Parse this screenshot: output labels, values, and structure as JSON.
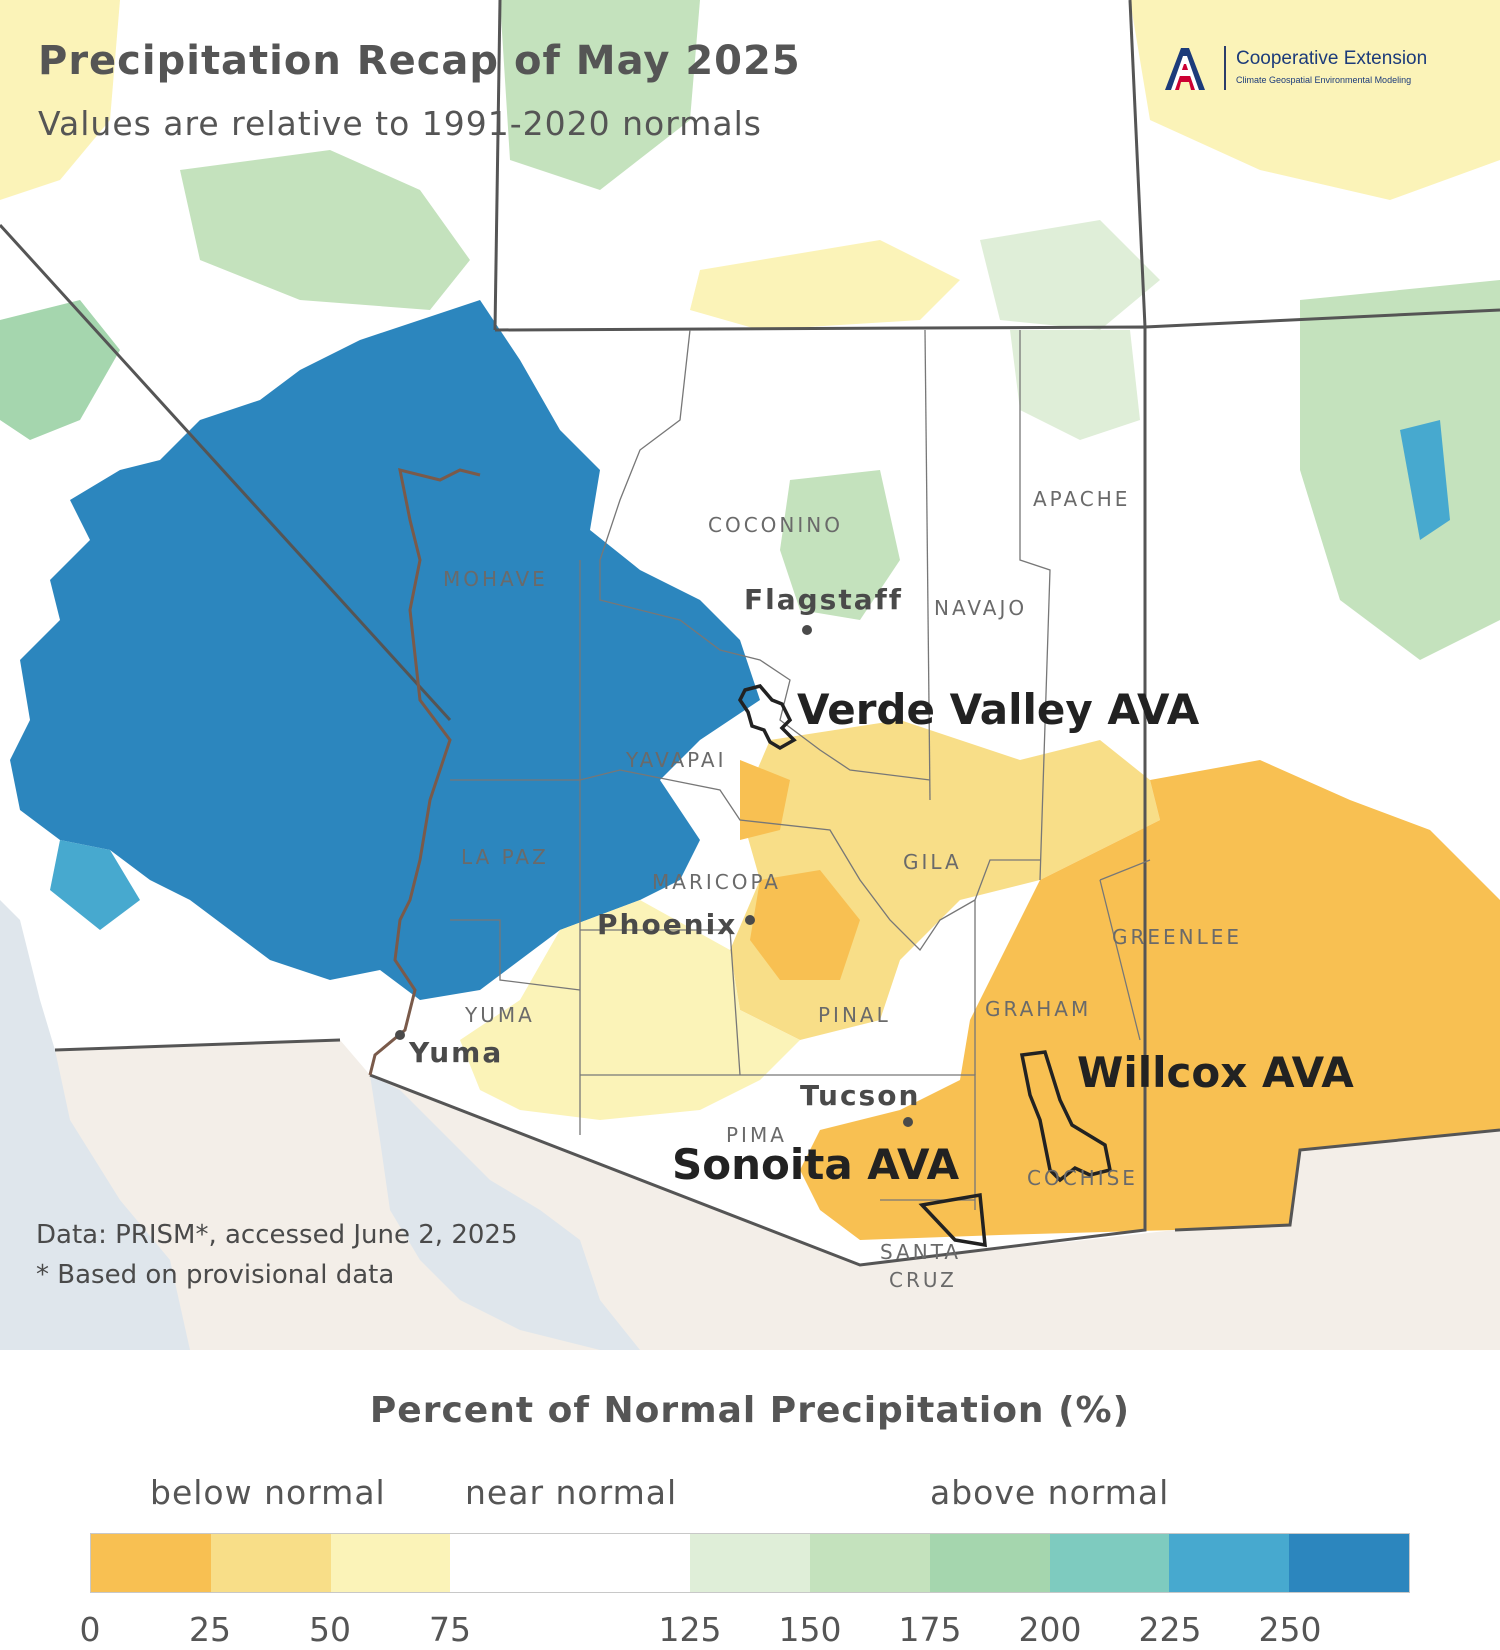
{
  "title": "Precipitation Recap of May 2025",
  "subtitle": "Values are relative to 1991-2020 normals",
  "logo": {
    "org": "Cooperative Extension",
    "program": "Climate Geospatial Environmental Modeling",
    "icon": "university-a-logo-icon"
  },
  "counties": [
    "COCONINO",
    "APACHE",
    "MOHAVE",
    "NAVAJO",
    "YAVAPAI",
    "GILA",
    "LA PAZ",
    "MARICOPA",
    "GREENLEE",
    "GRAHAM",
    "YUMA",
    "PINAL",
    "PIMA",
    "COCHISE",
    "SANTA",
    "CRUZ"
  ],
  "cities": [
    "Flagstaff",
    "Phoenix",
    "Yuma",
    "Tucson"
  ],
  "avas": [
    "Verde Valley AVA",
    "Willcox AVA",
    "Sonoita AVA"
  ],
  "notes": {
    "source": "Data: PRISM*, accessed June 2, 2025",
    "footnote": "* Based on provisional data"
  },
  "legend": {
    "title": "Percent of Normal Precipitation (%)",
    "categories": [
      "below normal",
      "near normal",
      "above normal"
    ],
    "ticks": [
      "0",
      "25",
      "50",
      "75",
      "125",
      "150",
      "175",
      "200",
      "225",
      "250"
    ],
    "colors": [
      "#f8c052",
      "#f8de88",
      "#fbf3b8",
      "#ffffff",
      "#ffffff",
      "#dfeed8",
      "#c4e2bd",
      "#a5d6ae",
      "#7ecbbf",
      "#47a9cf",
      "#2c86be"
    ]
  },
  "map_colors": {
    "much_above": "#2c86be",
    "above": "#47a9cf",
    "slightly_above": "#a5d6ae",
    "near": "#ffffff",
    "slightly_below": "#fbf3b8",
    "below": "#f8de88",
    "much_below": "#f8c052",
    "mexico_land": "#f3eee8",
    "ocean": "#dfe6ec",
    "boundary": "#555555"
  }
}
